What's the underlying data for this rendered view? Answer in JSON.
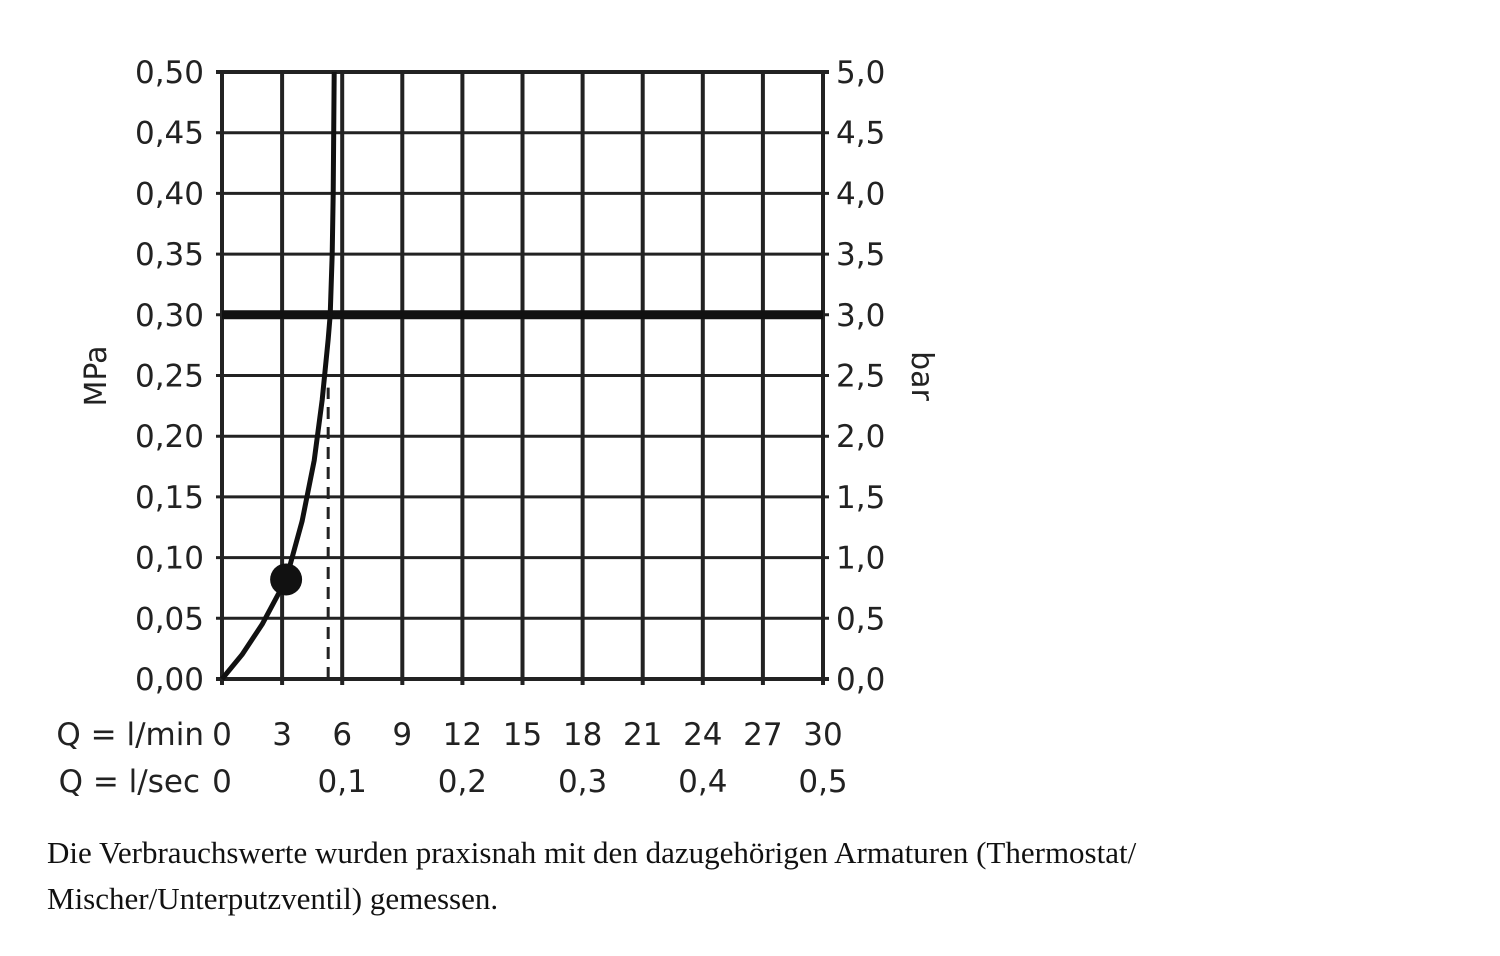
{
  "chart_data": {
    "type": "line",
    "xlabel": "Q = l/min",
    "xlabel_secondary": "Q = l/sec",
    "ylabel": "MPa",
    "ylabel_right": "bar",
    "xlim": [
      0,
      30
    ],
    "ylim": [
      0,
      0.5
    ],
    "grid": true,
    "x_ticks": [
      "0",
      "3",
      "6",
      "9",
      "12",
      "15",
      "18",
      "21",
      "24",
      "27",
      "30"
    ],
    "x_ticks_secondary": [
      {
        "at": 0,
        "label": "0"
      },
      {
        "at": 6,
        "label": "0,1"
      },
      {
        "at": 12,
        "label": "0,2"
      },
      {
        "at": 18,
        "label": "0,3"
      },
      {
        "at": 24,
        "label": "0,4"
      },
      {
        "at": 30,
        "label": "0,5"
      }
    ],
    "y_ticks": [
      "0,00",
      "0,05",
      "0,10",
      "0,15",
      "0,20",
      "0,25",
      "0,30",
      "0,35",
      "0,40",
      "0,45",
      "0,50"
    ],
    "y_ticks_right": [
      "0,0",
      "0,5",
      "1,0",
      "1,5",
      "2,0",
      "2,5",
      "3,0",
      "3,5",
      "4,0",
      "4,5",
      "5,0"
    ],
    "series": [
      {
        "x": [
          0,
          1,
          2,
          3.2,
          4,
          4.6,
          5.0,
          5.3,
          5.4,
          5.5,
          5.55,
          5.6
        ],
        "y": [
          0,
          0.02,
          0.045,
          0.082,
          0.13,
          0.18,
          0.23,
          0.28,
          0.3,
          0.35,
          0.4,
          0.5
        ]
      }
    ],
    "marker_point": {
      "x": 3.2,
      "y": 0.082
    },
    "reference_line_y": 0.3,
    "reference_dashed_x": {
      "x": 5.3,
      "y_top": 0.24
    }
  },
  "caption": "Die Verbrauchswerte wurden praxisnah mit den dazugehörigen Armaturen (Thermostat/ Mischer/Unterputzventil) gemessen."
}
